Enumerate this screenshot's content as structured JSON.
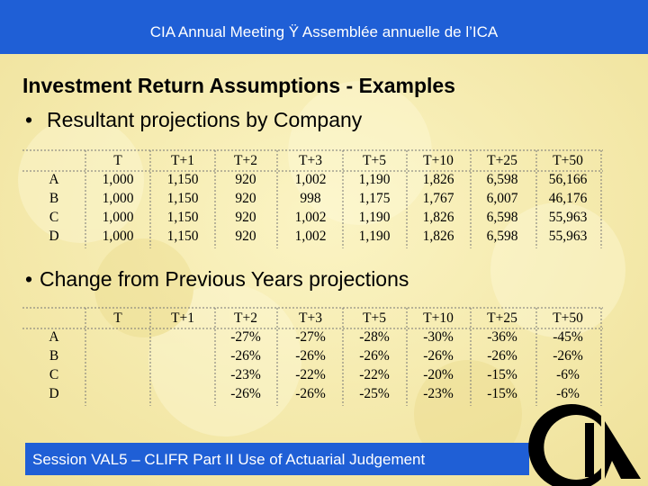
{
  "header": {
    "title": "CIA Annual Meeting Ÿ Assemblée annuelle de l’ICA"
  },
  "slide": {
    "title": "Investment Return Assumptions - Examples",
    "bullet_1": "Resultant projections by Company",
    "table_1": {
      "header": [
        null,
        "T",
        "T+1",
        "T+2",
        "T+3",
        "T+5",
        "T+10",
        "T+25",
        "T+50"
      ],
      "rows": [
        [
          "A",
          "1,000",
          "1,150",
          "920",
          "1,002",
          "1,190",
          "1,826",
          "6,598",
          "56,166"
        ],
        [
          "B",
          "1,000",
          "1,150",
          "920",
          "998",
          "1,175",
          "1,767",
          "6,007",
          "46,176"
        ],
        [
          "C",
          "1,000",
          "1,150",
          "920",
          "1,002",
          "1,190",
          "1,826",
          "6,598",
          "55,963"
        ],
        [
          "D",
          "1,000",
          "1,150",
          "920",
          "1,002",
          "1,190",
          "1,826",
          "6,598",
          "55,963"
        ]
      ]
    },
    "bullet_2": "Change from Previous Years projections",
    "table_2": {
      "header": [
        null,
        "T",
        "T+1",
        "T+2",
        "T+3",
        "T+5",
        "T+10",
        "T+25",
        "T+50"
      ],
      "rows": [
        [
          "A",
          null,
          null,
          "-27%",
          "-27%",
          "-28%",
          "-30%",
          "-36%",
          "-45%"
        ],
        [
          "B",
          null,
          null,
          "-26%",
          "-26%",
          "-26%",
          "-26%",
          "-26%",
          "-26%"
        ],
        [
          "C",
          null,
          null,
          "-23%",
          "-22%",
          "-22%",
          "-20%",
          "-15%",
          "-6%"
        ],
        [
          "D",
          null,
          null,
          "-26%",
          "-26%",
          "-25%",
          "-23%",
          "-15%",
          "-6%"
        ]
      ]
    }
  },
  "footer": {
    "text": "Session VAL5 – CLIFR Part II Use of Actuarial Judgement"
  }
}
